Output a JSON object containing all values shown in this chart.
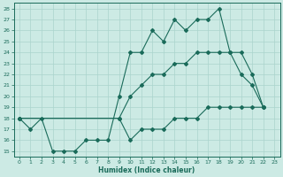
{
  "xlabel": "Humidex (Indice chaleur)",
  "ylabel": "",
  "bg_color": "#cceae4",
  "line_color": "#1a6b5a",
  "grid_color": "#aad4cc",
  "xlim": [
    -0.5,
    23.5
  ],
  "ylim": [
    14.5,
    28.5
  ],
  "xticks": [
    0,
    1,
    2,
    3,
    4,
    5,
    6,
    7,
    8,
    9,
    10,
    11,
    12,
    13,
    14,
    15,
    16,
    17,
    18,
    19,
    20,
    21,
    22,
    23
  ],
  "yticks": [
    15,
    16,
    17,
    18,
    19,
    20,
    21,
    22,
    23,
    24,
    25,
    26,
    27,
    28
  ],
  "line1_x": [
    0,
    1,
    2,
    3,
    4,
    5,
    6,
    7,
    8,
    9,
    10,
    11,
    12,
    13,
    14,
    15,
    16,
    17,
    18,
    19,
    20,
    21,
    22
  ],
  "line1_y": [
    18,
    17,
    18,
    15,
    15,
    15,
    16,
    16,
    16,
    20,
    24,
    24,
    26,
    25,
    27,
    26,
    27,
    27,
    28,
    24,
    22,
    21,
    19
  ],
  "line2_x": [
    0,
    9,
    10,
    11,
    12,
    13,
    14,
    15,
    16,
    17,
    18,
    19,
    20,
    21,
    22
  ],
  "line2_y": [
    18,
    18,
    20,
    21,
    22,
    22,
    23,
    23,
    24,
    24,
    24,
    24,
    24,
    22,
    19
  ],
  "line3_x": [
    0,
    9,
    10,
    11,
    12,
    13,
    14,
    15,
    16,
    17,
    18,
    19,
    20,
    21,
    22
  ],
  "line3_y": [
    18,
    18,
    16,
    17,
    17,
    17,
    18,
    18,
    18,
    19,
    19,
    19,
    19,
    19,
    19
  ]
}
